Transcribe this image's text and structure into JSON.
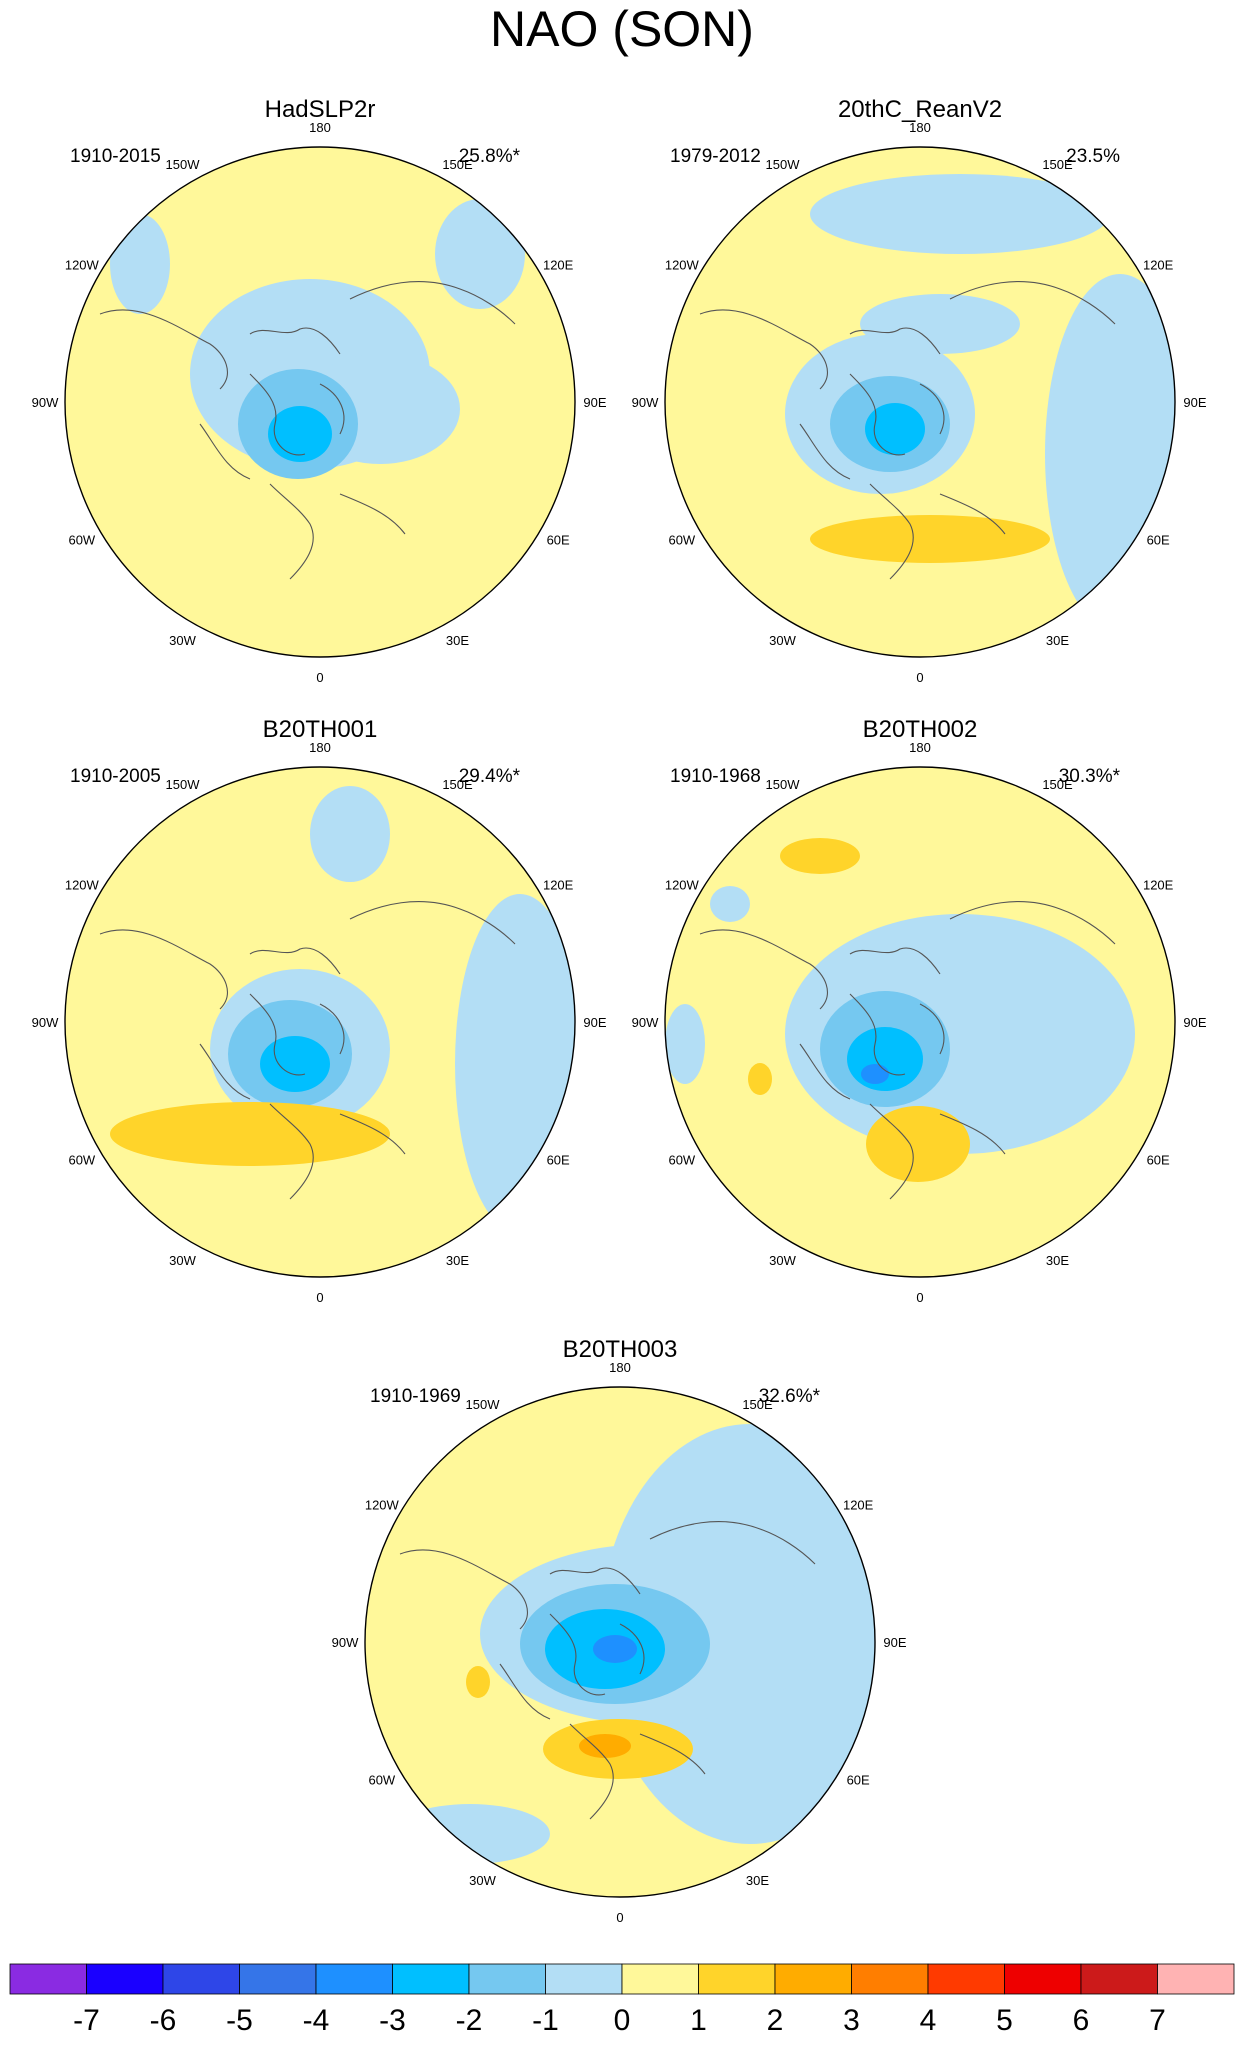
{
  "title": "NAO (SON)",
  "colors": {
    "ocean_land_border": "#555555",
    "outline": "#000000"
  },
  "lon_labels": [
    "180",
    "150E",
    "120E",
    "90E",
    "60E",
    "30E",
    "0",
    "30W",
    "60W",
    "90W",
    "120W",
    "150W"
  ],
  "panels": [
    {
      "name": "HadSLP2r",
      "period": "1910-2015",
      "variance": "25.8%*",
      "pattern": "hadslp"
    },
    {
      "name": "20thC_ReanV2",
      "period": "1979-2012",
      "variance": "23.5%",
      "pattern": "rean"
    },
    {
      "name": "B20TH001",
      "period": "1910-2005",
      "variance": "29.4%*",
      "pattern": "b001"
    },
    {
      "name": "B20TH002",
      "period": "1910-1968",
      "variance": "30.3%*",
      "pattern": "b002"
    },
    {
      "name": "B20TH003",
      "period": "1910-1969",
      "variance": "32.6%*",
      "pattern": "b003"
    }
  ],
  "colorbar": {
    "colors": [
      "#8a2be2",
      "#1a00ff",
      "#2e46e8",
      "#3575e8",
      "#1e90ff",
      "#00bfff",
      "#75c8f0",
      "#b3def5",
      "#fff89a",
      "#ffd42a",
      "#ffac00",
      "#ff7e00",
      "#ff3a00",
      "#ee0000",
      "#cc1a1a",
      "#ffb3b3"
    ],
    "labels": [
      "-7",
      "-6",
      "-5",
      "-4",
      "-3",
      "-2",
      "-1",
      "0",
      "1",
      "2",
      "3",
      "4",
      "5",
      "6",
      "7"
    ]
  }
}
